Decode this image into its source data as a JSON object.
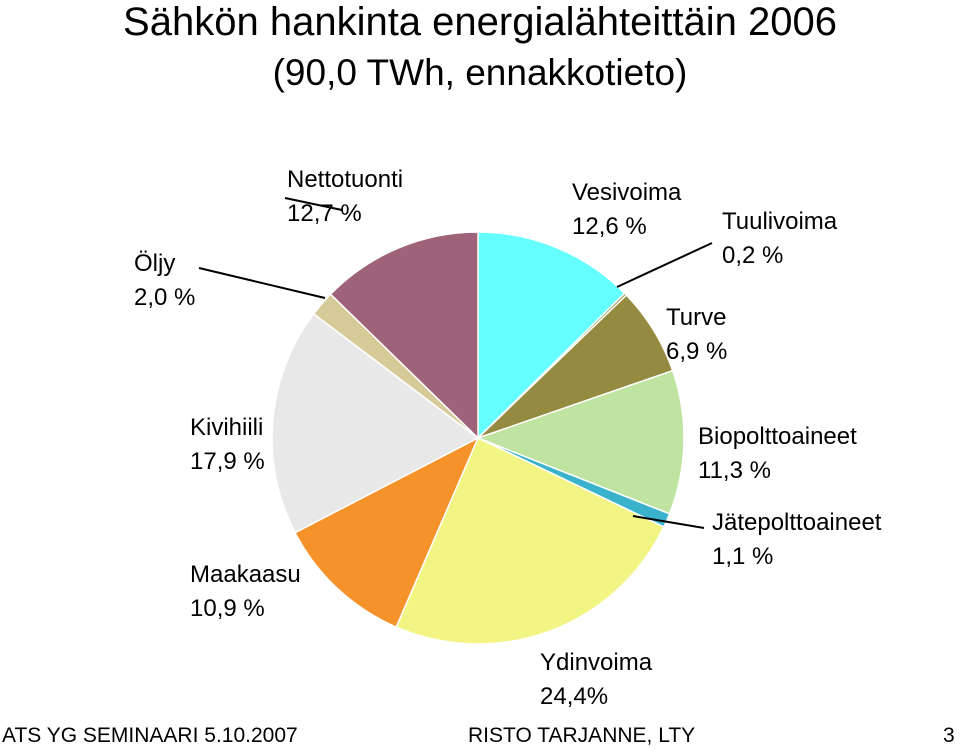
{
  "chart_data": {
    "type": "pie",
    "title": "Sähkön hankinta energialähteittäin 2006",
    "subtitle": "(90,0 TWh, ennakkotieto)",
    "slices": [
      {
        "name": "Vesivoima",
        "value": 12.6,
        "label": "12,6 %",
        "color": "#66FFFF"
      },
      {
        "name": "Tuulivoima",
        "value": 0.2,
        "label": "0,2 %",
        "color": "#8A8F3E"
      },
      {
        "name": "Turve",
        "value": 6.9,
        "label": "6,9 %",
        "color": "#948B40"
      },
      {
        "name": "Biopolttoaineet",
        "value": 11.3,
        "label": "11,3 %",
        "color": "#BFE3A0"
      },
      {
        "name": "Jätepolttoaineet",
        "value": 1.1,
        "label": "1,1 %",
        "color": "#3BB2CC"
      },
      {
        "name": "Ydinvoima",
        "value": 24.4,
        "label": "24,4%",
        "color": "#F2F584"
      },
      {
        "name": "Maakaasu",
        "value": 10.9,
        "label": "10,9 %",
        "color": "#F5922A"
      },
      {
        "name": "Kivihiili",
        "value": 17.9,
        "label": "17,9 %",
        "color": "#E8E8E8"
      },
      {
        "name": "Öljy",
        "value": 2.0,
        "label": "2,0 %",
        "color": "#D6CA99"
      },
      {
        "name": "Nettotuonti",
        "value": 12.7,
        "label": "12,7 %",
        "color": "#9E6379"
      }
    ]
  },
  "footer": {
    "left": "ATS YG SEMINAARI 5.10.2007",
    "center": "RISTO TARJANNE, LTY",
    "page": "3"
  }
}
